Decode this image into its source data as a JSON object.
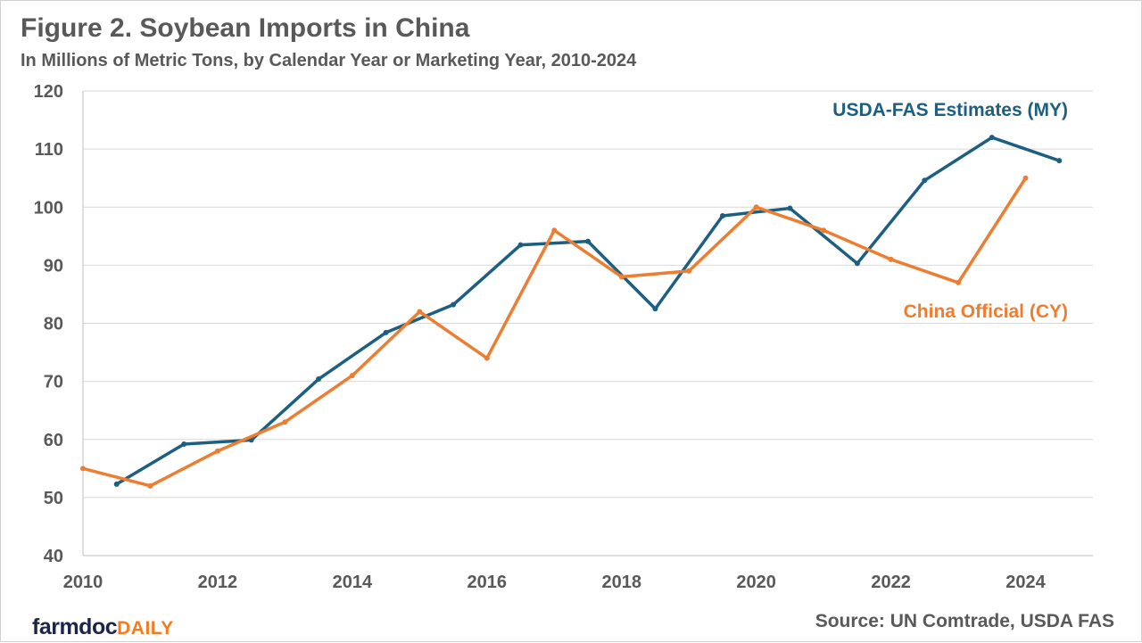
{
  "chart_data": {
    "type": "line",
    "title": "Figure 2. Soybean Imports in China",
    "subtitle": "In Millions of Metric Tons, by Calendar Year or Marketing Year, 2010-2024",
    "xlabel": "",
    "ylabel": "",
    "xlim": [
      2010,
      2025
    ],
    "ylim": [
      40,
      120
    ],
    "xticks": [
      2010,
      2012,
      2014,
      2016,
      2018,
      2020,
      2022,
      2024
    ],
    "yticks": [
      40,
      50,
      60,
      70,
      80,
      90,
      100,
      110,
      120
    ],
    "grid": true,
    "series": [
      {
        "name": "USDA-FAS Estimates (MY)",
        "color": "#1c5f80",
        "x": [
          2010.5,
          2011.5,
          2012.5,
          2013.5,
          2014.5,
          2015.5,
          2016.5,
          2017.5,
          2018.5,
          2019.5,
          2020.5,
          2021.5,
          2022.5,
          2023.5,
          2024.5
        ],
        "values": [
          52.3,
          59.2,
          59.9,
          70.4,
          78.4,
          83.2,
          93.5,
          94.1,
          82.5,
          98.5,
          99.8,
          90.3,
          104.6,
          112.0,
          108.0
        ]
      },
      {
        "name": "China Official (CY)",
        "color": "#ed7d31",
        "x": [
          2010,
          2011,
          2012,
          2013,
          2014,
          2015,
          2016,
          2017,
          2018,
          2019,
          2020,
          2021,
          2022,
          2023,
          2024
        ],
        "values": [
          55,
          52,
          58,
          63,
          71,
          82,
          74,
          96,
          88,
          89,
          100,
          96,
          91,
          87,
          105
        ]
      }
    ],
    "source": "Source: UN Comtrade, USDA FAS"
  },
  "logo": {
    "part1": "farmdoc",
    "part2": "DAILY"
  }
}
